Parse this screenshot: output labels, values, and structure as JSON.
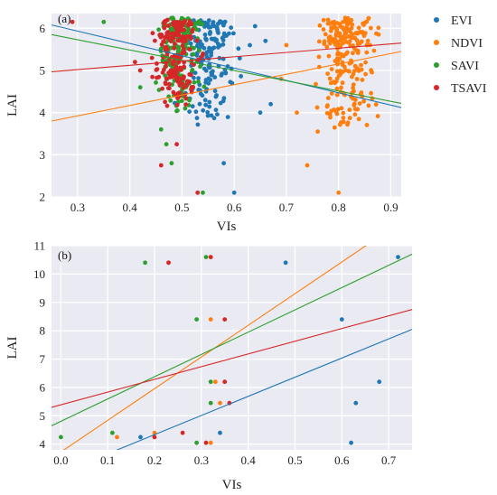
{
  "colors": {
    "EVI": "#1f77b4",
    "NDVI": "#ff7f0e",
    "SAVI": "#2ca02c",
    "TSAVI": "#d62728",
    "plot_bg": "#eaeaf2",
    "grid": "#ffffff"
  },
  "legend": {
    "placement": "right-of-top-panel",
    "entries": [
      "EVI",
      "NDVI",
      "SAVI",
      "TSAVI"
    ]
  },
  "chart_data": [
    {
      "type": "scatter",
      "panel_label": "(a)",
      "xlabel": "VIs",
      "ylabel": "LAI",
      "xlim": [
        0.25,
        0.92
      ],
      "ylim": [
        2.0,
        6.35
      ],
      "xticks": [
        0.3,
        0.4,
        0.5,
        0.6,
        0.7,
        0.8,
        0.9
      ],
      "yticks": [
        2,
        3,
        4,
        5,
        6
      ],
      "grid": true,
      "series": [
        {
          "name": "EVI",
          "cluster": {
            "x_range": [
              0.48,
              0.62
            ],
            "y_range": [
              3.5,
              6.2
            ],
            "count": 160,
            "seed": 11
          },
          "points": [
            [
              0.6,
              2.1
            ],
            [
              0.58,
              2.8
            ],
            [
              0.65,
              4.0
            ],
            [
              0.63,
              5.6
            ],
            [
              0.66,
              5.7
            ],
            [
              0.67,
              4.2
            ],
            [
              0.64,
              6.05
            ]
          ],
          "fit": {
            "x": [
              0.25,
              0.92
            ],
            "y": [
              6.08,
              4.12
            ]
          }
        },
        {
          "name": "NDVI",
          "cluster": {
            "x_range": [
              0.74,
              0.89
            ],
            "y_range": [
              3.5,
              6.25
            ],
            "count": 230,
            "seed": 23
          },
          "points": [
            [
              0.8,
              2.1
            ],
            [
              0.74,
              2.75
            ],
            [
              0.69,
              4.8
            ],
            [
              0.7,
              5.6
            ],
            [
              0.72,
              4.0
            ],
            [
              0.76,
              3.55
            ],
            [
              0.78,
              6.2
            ]
          ],
          "fit": {
            "x": [
              0.25,
              0.92
            ],
            "y": [
              3.8,
              5.45
            ]
          }
        },
        {
          "name": "SAVI",
          "cluster": {
            "x_range": [
              0.44,
              0.55
            ],
            "y_range": [
              3.9,
              6.25
            ],
            "count": 200,
            "seed": 37
          },
          "points": [
            [
              0.35,
              6.15
            ],
            [
              0.47,
              3.25
            ],
            [
              0.54,
              2.1
            ],
            [
              0.48,
              2.8
            ],
            [
              0.46,
              3.6
            ],
            [
              0.42,
              4.6
            ]
          ],
          "fit": {
            "x": [
              0.25,
              0.92
            ],
            "y": [
              5.85,
              4.22
            ]
          }
        },
        {
          "name": "TSAVI",
          "cluster": {
            "x_range": [
              0.43,
              0.55
            ],
            "y_range": [
              4.0,
              6.2
            ],
            "count": 190,
            "seed": 53
          },
          "points": [
            [
              0.29,
              6.15
            ],
            [
              0.53,
              2.1
            ],
            [
              0.46,
              2.75
            ],
            [
              0.49,
              3.25
            ],
            [
              0.42,
              5.0
            ],
            [
              0.41,
              5.2
            ]
          ],
          "fit": {
            "x": [
              0.25,
              0.92
            ],
            "y": [
              4.97,
              5.65
            ]
          }
        }
      ]
    },
    {
      "type": "scatter",
      "panel_label": "(b)",
      "xlabel": "VIs",
      "ylabel": "LAI",
      "xlim": [
        -0.02,
        0.75
      ],
      "ylim": [
        3.8,
        11.0
      ],
      "xticks": [
        0.0,
        0.1,
        0.2,
        0.3,
        0.4,
        0.5,
        0.6,
        0.7
      ],
      "yticks": [
        4,
        5,
        6,
        7,
        8,
        9,
        10,
        11
      ],
      "grid": true,
      "series": [
        {
          "name": "EVI",
          "points": [
            [
              0.72,
              10.6
            ],
            [
              0.48,
              10.4
            ],
            [
              0.6,
              8.4
            ],
            [
              0.68,
              6.2
            ],
            [
              0.63,
              5.45
            ],
            [
              0.62,
              4.05
            ],
            [
              0.34,
              4.4
            ],
            [
              0.17,
              4.25
            ]
          ],
          "fit": {
            "x": [
              -0.02,
              0.75
            ],
            "y": [
              2.85,
              8.05
            ]
          }
        },
        {
          "name": "NDVI",
          "points": [
            [
              0.32,
              10.6
            ],
            [
              0.23,
              10.4
            ],
            [
              0.32,
              8.4
            ],
            [
              0.33,
              6.2
            ],
            [
              0.34,
              5.45
            ],
            [
              0.2,
              4.4
            ],
            [
              0.12,
              4.25
            ],
            [
              0.32,
              4.05
            ]
          ],
          "fit": {
            "x": [
              -0.02,
              0.75
            ],
            "y": [
              3.5,
              12.1
            ]
          }
        },
        {
          "name": "SAVI",
          "points": [
            [
              0.18,
              10.4
            ],
            [
              0.31,
              10.6
            ],
            [
              0.29,
              8.4
            ],
            [
              0.32,
              6.2
            ],
            [
              0.32,
              5.45
            ],
            [
              0.0,
              4.25
            ],
            [
              0.11,
              4.4
            ],
            [
              0.29,
              4.05
            ]
          ],
          "fit": {
            "x": [
              -0.02,
              0.75
            ],
            "y": [
              4.65,
              10.7
            ]
          }
        },
        {
          "name": "TSAVI",
          "points": [
            [
              0.23,
              10.4
            ],
            [
              0.32,
              10.6
            ],
            [
              0.35,
              8.4
            ],
            [
              0.35,
              6.2
            ],
            [
              0.36,
              5.45
            ],
            [
              0.26,
              4.4
            ],
            [
              0.2,
              4.25
            ],
            [
              0.31,
              4.05
            ]
          ],
          "fit": {
            "x": [
              -0.02,
              0.75
            ],
            "y": [
              5.3,
              8.75
            ]
          }
        }
      ]
    }
  ]
}
